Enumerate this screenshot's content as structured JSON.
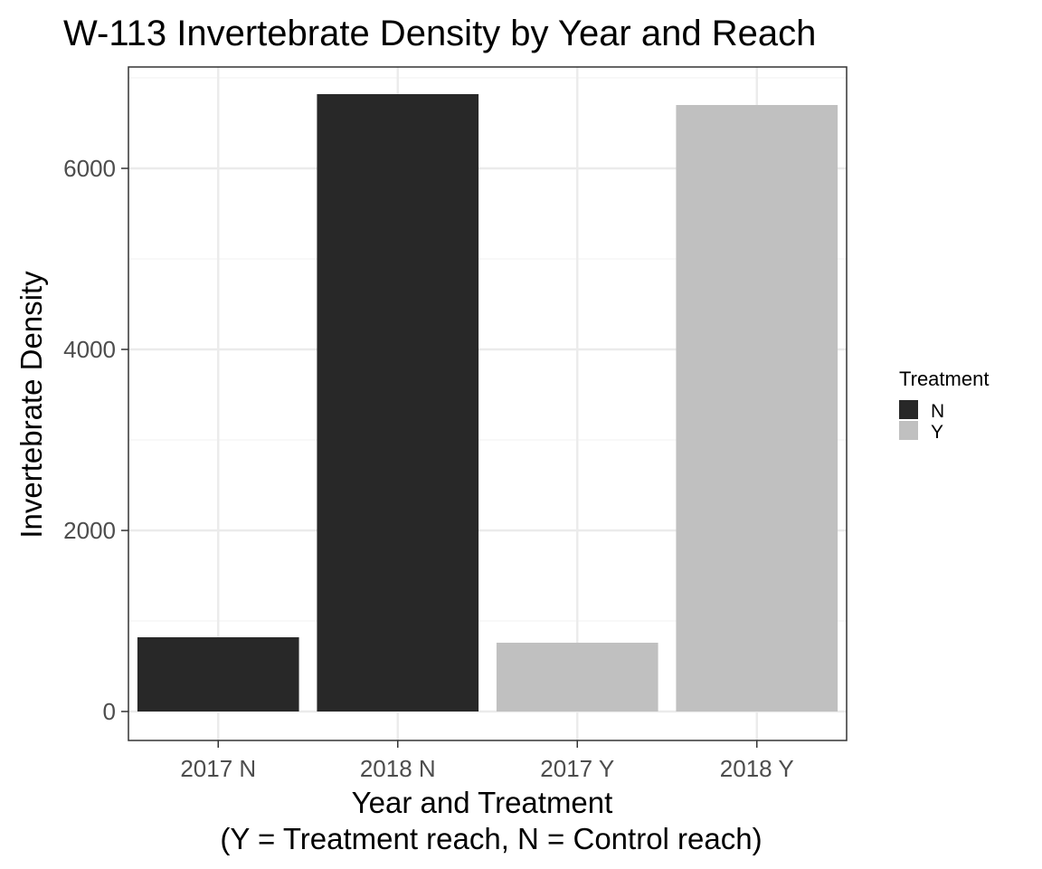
{
  "chart_data": {
    "type": "bar",
    "title": "W-113 Invertebrate Density by Year and Reach",
    "xlabel": "Year and Treatment",
    "xlabel_line2": "(Y = Treatment reach, N = Control reach)",
    "ylabel": "Invertebrate Density",
    "categories": [
      "2017 N",
      "2018 N",
      "2017 Y",
      "2018 Y"
    ],
    "values": [
      820,
      6820,
      760,
      6700
    ],
    "fill_group": [
      "N",
      "N",
      "Y",
      "Y"
    ],
    "ylim": [
      -320,
      7120
    ],
    "yticks": [
      0,
      2000,
      4000,
      6000
    ],
    "ytick_labels": [
      "0",
      "2000",
      "4000",
      "6000"
    ],
    "grid": true,
    "legend": {
      "title": "Treatment",
      "position": "right",
      "entries": [
        {
          "label": "N",
          "color": "#282828"
        },
        {
          "label": "Y",
          "color": "#c0c0c0"
        }
      ]
    },
    "colors": {
      "N": "#282828",
      "Y": "#c0c0c0",
      "grid_major": "#ebebeb",
      "grid_minor": "#f3f3f3",
      "panel_border": "#333333"
    }
  }
}
